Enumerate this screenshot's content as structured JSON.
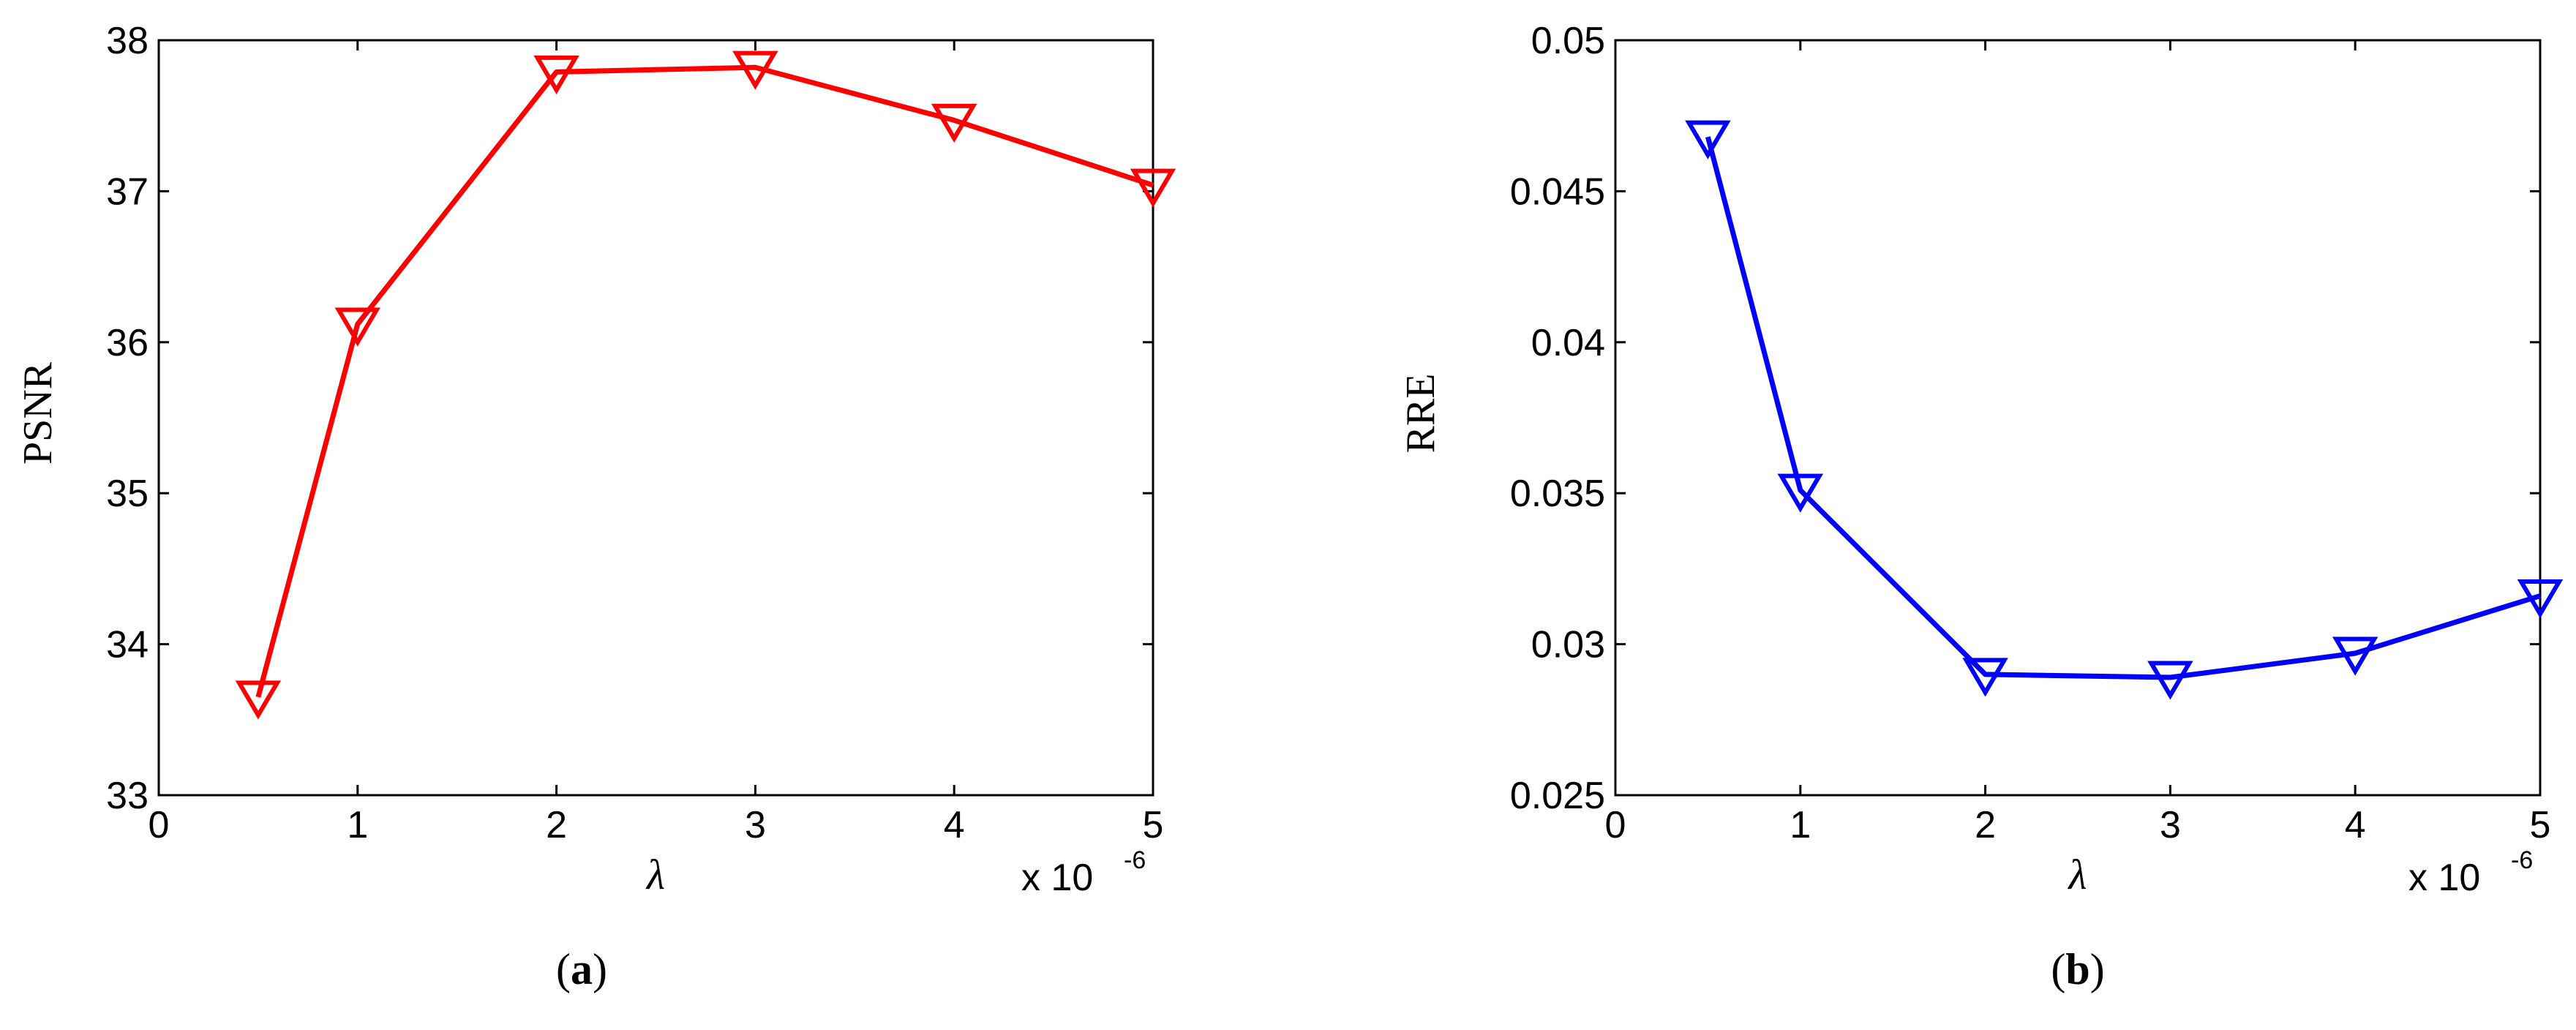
{
  "chart_data": [
    {
      "type": "line",
      "panel_label": "a",
      "xlabel": "λ",
      "ylabel": "PSNR",
      "x_multiplier": "x 10",
      "x_multiplier_exponent": "-6",
      "xlim": [
        0,
        5
      ],
      "ylim": [
        33,
        38
      ],
      "xticks": [
        0,
        1,
        2,
        3,
        4,
        5
      ],
      "yticks": [
        33,
        34,
        35,
        36,
        37,
        38
      ],
      "grid": false,
      "series": [
        {
          "color": "#ff0000",
          "marker": "triangle-down",
          "x": [
            0.5,
            1,
            2,
            3,
            4,
            5
          ],
          "y": [
            33.65,
            36.12,
            37.79,
            37.82,
            37.47,
            37.04
          ]
        }
      ]
    },
    {
      "type": "line",
      "panel_label": "b",
      "xlabel": "λ",
      "ylabel": "RRE",
      "x_multiplier": "x 10",
      "x_multiplier_exponent": "-6",
      "xlim": [
        0,
        5
      ],
      "ylim": [
        0.025,
        0.05
      ],
      "xticks": [
        0,
        1,
        2,
        3,
        4,
        5
      ],
      "yticks": [
        "0.025",
        "0.03",
        "0.035",
        "0.04",
        "0.045",
        "0.05"
      ],
      "grid": false,
      "series": [
        {
          "color": "#0000ff",
          "marker": "triangle-down",
          "x": [
            0.5,
            1,
            2,
            3,
            4,
            5
          ],
          "y": [
            0.0468,
            0.0351,
            0.029,
            0.0289,
            0.0297,
            0.0316
          ]
        }
      ]
    }
  ]
}
